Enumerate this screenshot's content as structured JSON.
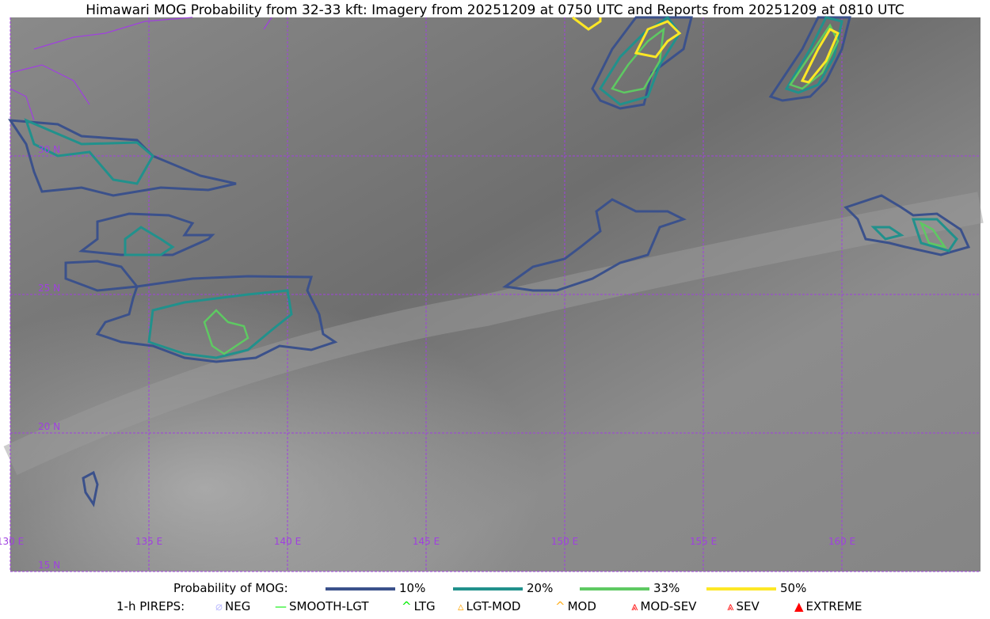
{
  "title": "Himawari MOG Probability from 32-33 kft: Imagery from 20251209 at 0750 UTC and Reports from 20251209 at 0810 UTC",
  "chart_data": {
    "type": "contour-map",
    "title": "Himawari MOG Probability from 32-33 kft: Imagery from 20251209 at 0750 UTC and Reports from 20251209 at 0810 UTC",
    "lon_range": [
      130,
      165
    ],
    "lat_range": [
      15,
      35
    ],
    "lon_ticks": [
      "130 E",
      "135 E",
      "140 E",
      "145 E",
      "150 E",
      "155 E",
      "160 E"
    ],
    "lat_ticks": [
      "30 N",
      "25 N",
      "20 N",
      "15 N"
    ],
    "grid": true,
    "gridline_color": "#a040e0",
    "contour_levels": [
      {
        "label": "10%",
        "color": "#3b518b"
      },
      {
        "label": "20%",
        "color": "#21918c"
      },
      {
        "label": "33%",
        "color": "#5ec962"
      },
      {
        "label": "50%",
        "color": "#fde725"
      }
    ]
  },
  "legend": {
    "prob_title": "Probability of MOG:",
    "pirep_title": "1-h PIREPS:",
    "pireps": [
      {
        "label": "NEG",
        "color": "#c0c0ff"
      },
      {
        "label": "SMOOTH-LGT",
        "color": "#00ee00"
      },
      {
        "label": "LTG",
        "color": "#00ee00"
      },
      {
        "label": "LGT-MOD",
        "color": "#ffb020"
      },
      {
        "label": "MOD",
        "color": "#ffb020"
      },
      {
        "label": "MOD-SEV",
        "color": "#ff2020"
      },
      {
        "label": "SEV",
        "color": "#ff2020"
      },
      {
        "label": "EXTREME",
        "color": "#ff0000"
      }
    ]
  }
}
